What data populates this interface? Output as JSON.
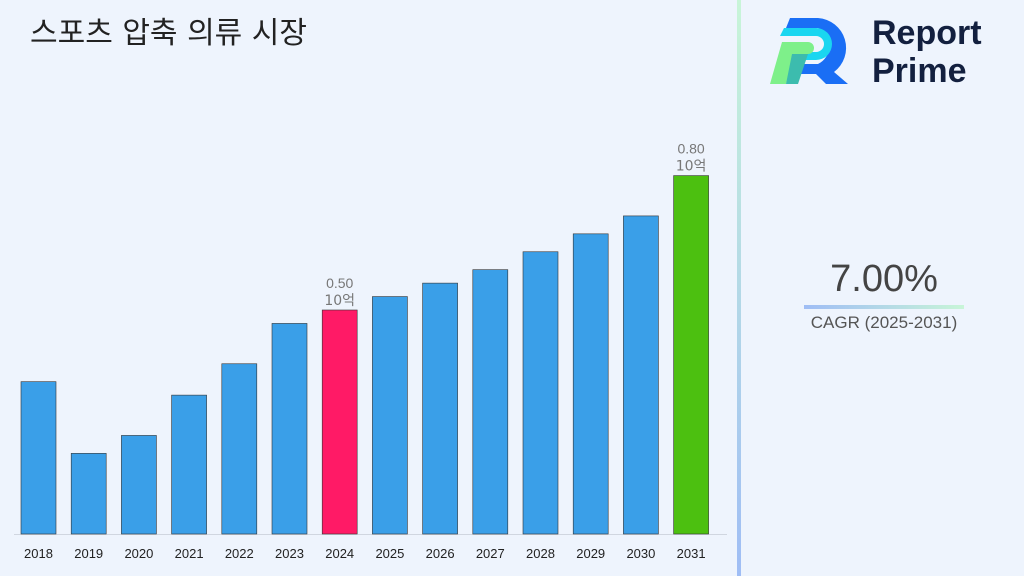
{
  "chart_data": {
    "type": "bar",
    "title": "스포츠 압축 의류 시장",
    "categories": [
      "2018",
      "2019",
      "2020",
      "2021",
      "2022",
      "2023",
      "2024",
      "2025",
      "2026",
      "2027",
      "2028",
      "2029",
      "2030",
      "2031"
    ],
    "values": [
      0.34,
      0.18,
      0.22,
      0.31,
      0.38,
      0.47,
      0.5,
      0.53,
      0.56,
      0.59,
      0.63,
      0.67,
      0.71,
      0.8
    ],
    "unit": "10억",
    "data_labels": [
      {
        "category": "2024",
        "value": "0.50",
        "unit": "10억"
      },
      {
        "category": "2031",
        "value": "0.80",
        "unit": "10억"
      }
    ],
    "colors": {
      "default": "#3a9fe8",
      "highlight_2024": "#ff1a66",
      "highlight_2031": "#4cc010"
    },
    "ylim": [
      0,
      0.85
    ],
    "grid": false,
    "legend": "none"
  },
  "brand": {
    "line1": "Report",
    "line2": "Prime"
  },
  "cagr": {
    "value": "7.00%",
    "label": "CAGR (2025-2031)"
  }
}
